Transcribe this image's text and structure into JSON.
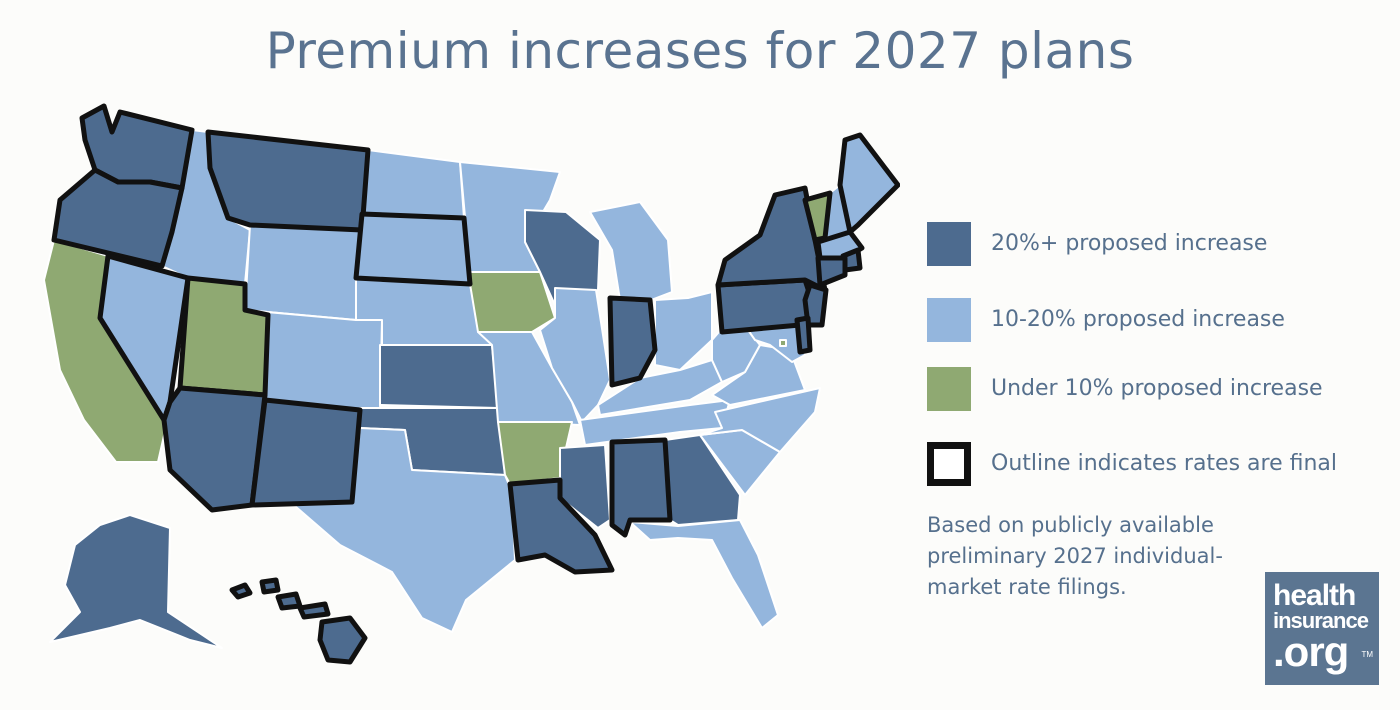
{
  "title": "Premium increases for 2027 plans",
  "colors": {
    "high": "#4d6b8f",
    "mid": "#94b6dd",
    "low": "#8fa972",
    "outline": "#111111",
    "text": "#56708d"
  },
  "legend": [
    {
      "category": "high",
      "label": "20%+ proposed increase"
    },
    {
      "category": "mid",
      "label": "10-20% proposed increase"
    },
    {
      "category": "low",
      "label": "Under 10% proposed increase"
    },
    {
      "category": "outline",
      "label": "Outline indicates rates are final"
    }
  ],
  "note": "Based on publicly available preliminary 2027 individual-market rate filings.",
  "logo": {
    "line1": "health",
    "line2": "insurance",
    "line3": ".org",
    "mark": "TM"
  },
  "states": [
    {
      "code": "WA",
      "category": "high",
      "final": true
    },
    {
      "code": "OR",
      "category": "high",
      "final": true
    },
    {
      "code": "CA",
      "category": "low",
      "final": false
    },
    {
      "code": "NV",
      "category": "mid",
      "final": true
    },
    {
      "code": "ID",
      "category": "mid",
      "final": false
    },
    {
      "code": "MT",
      "category": "high",
      "final": true
    },
    {
      "code": "WY",
      "category": "mid",
      "final": false
    },
    {
      "code": "UT",
      "category": "low",
      "final": true
    },
    {
      "code": "AZ",
      "category": "high",
      "final": true
    },
    {
      "code": "CO",
      "category": "mid",
      "final": false
    },
    {
      "code": "NM",
      "category": "high",
      "final": true
    },
    {
      "code": "ND",
      "category": "mid",
      "final": false
    },
    {
      "code": "SD",
      "category": "mid",
      "final": true
    },
    {
      "code": "NE",
      "category": "mid",
      "final": false
    },
    {
      "code": "KS",
      "category": "high",
      "final": false
    },
    {
      "code": "OK",
      "category": "high",
      "final": false
    },
    {
      "code": "TX",
      "category": "mid",
      "final": false
    },
    {
      "code": "MN",
      "category": "mid",
      "final": false
    },
    {
      "code": "IA",
      "category": "low",
      "final": false
    },
    {
      "code": "MO",
      "category": "mid",
      "final": false
    },
    {
      "code": "AR",
      "category": "low",
      "final": false
    },
    {
      "code": "LA",
      "category": "high",
      "final": true
    },
    {
      "code": "WI",
      "category": "high",
      "final": false
    },
    {
      "code": "IL",
      "category": "mid",
      "final": false
    },
    {
      "code": "MI",
      "category": "mid",
      "final": false
    },
    {
      "code": "IN",
      "category": "high",
      "final": true
    },
    {
      "code": "OH",
      "category": "mid",
      "final": false
    },
    {
      "code": "KY",
      "category": "mid",
      "final": false
    },
    {
      "code": "TN",
      "category": "mid",
      "final": false
    },
    {
      "code": "MS",
      "category": "high",
      "final": false
    },
    {
      "code": "AL",
      "category": "high",
      "final": true
    },
    {
      "code": "GA",
      "category": "high",
      "final": false
    },
    {
      "code": "FL",
      "category": "mid",
      "final": false
    },
    {
      "code": "SC",
      "category": "mid",
      "final": false
    },
    {
      "code": "NC",
      "category": "mid",
      "final": false
    },
    {
      "code": "VA",
      "category": "mid",
      "final": false
    },
    {
      "code": "WV",
      "category": "mid",
      "final": false
    },
    {
      "code": "PA",
      "category": "high",
      "final": true
    },
    {
      "code": "NY",
      "category": "high",
      "final": true
    },
    {
      "code": "VT",
      "category": "low",
      "final": true
    },
    {
      "code": "NH",
      "category": "mid",
      "final": false
    },
    {
      "code": "ME",
      "category": "mid",
      "final": true
    },
    {
      "code": "MA",
      "category": "mid",
      "final": true
    },
    {
      "code": "RI",
      "category": "high",
      "final": true
    },
    {
      "code": "CT",
      "category": "high",
      "final": true
    },
    {
      "code": "NJ",
      "category": "high",
      "final": true
    },
    {
      "code": "DE",
      "category": "high",
      "final": true
    },
    {
      "code": "MD",
      "category": "mid",
      "final": false
    },
    {
      "code": "DC",
      "category": "low",
      "final": false
    },
    {
      "code": "AK",
      "category": "high",
      "final": false
    },
    {
      "code": "HI",
      "category": "high",
      "final": true
    }
  ]
}
